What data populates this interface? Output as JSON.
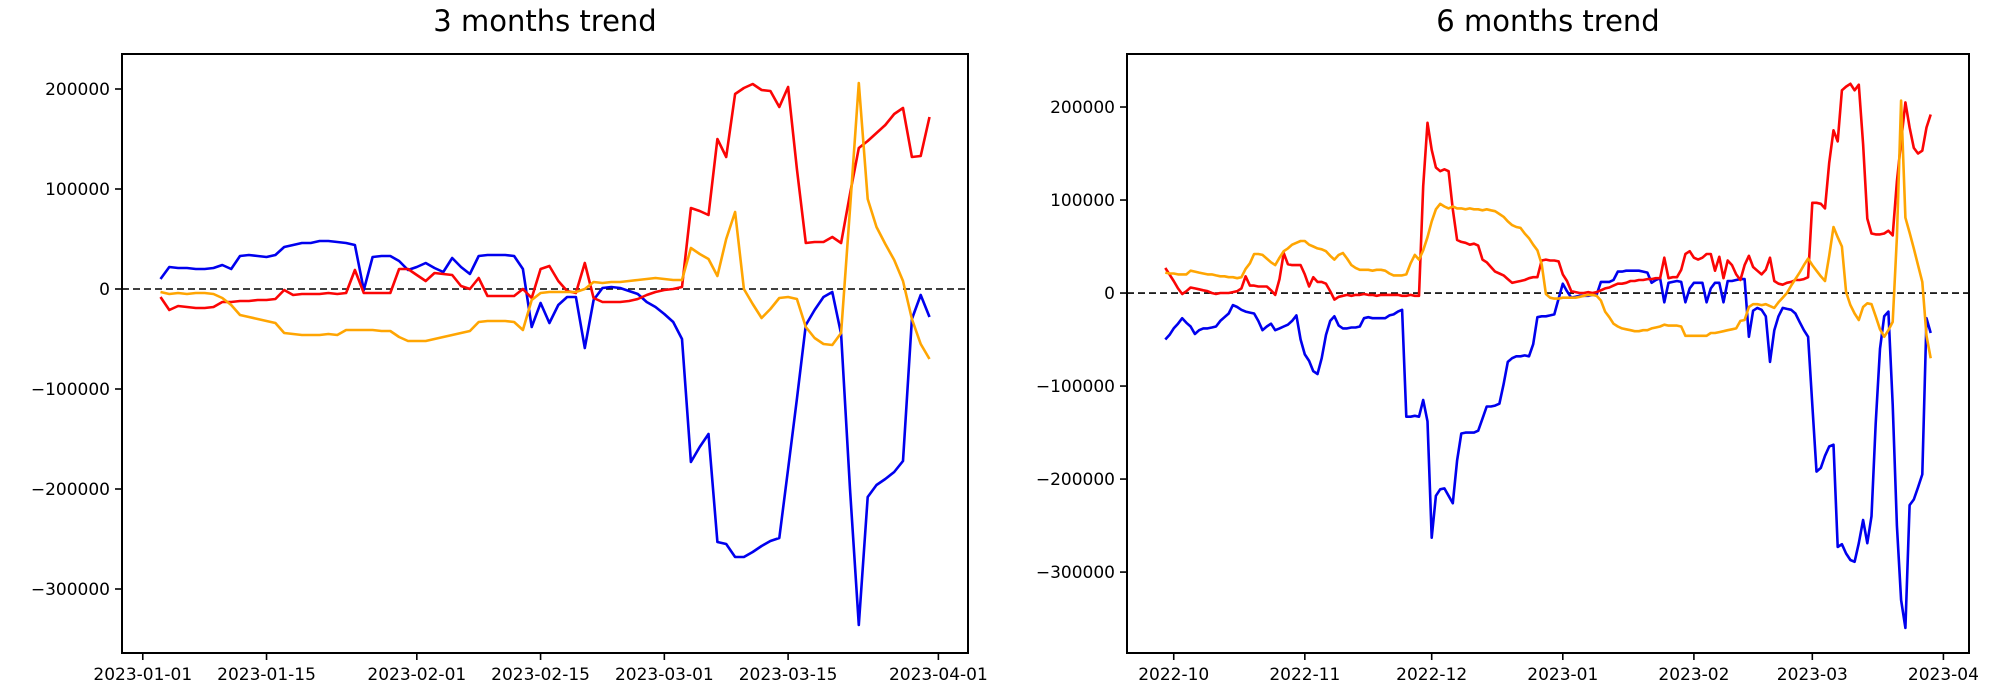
{
  "figure": {
    "background": "#ffffff",
    "axis_color": "#000000",
    "zero_line": {
      "color": "#000000",
      "style": "dashed"
    }
  },
  "chart_data": [
    {
      "type": "line",
      "title": "3 months trend",
      "xlabel": "",
      "ylabel": "",
      "grid": false,
      "legend": "none",
      "start_date": "2023-01-03",
      "interval_days": 1,
      "ylim": [
        -364000,
        235000
      ],
      "xlim_index": [
        -4.35,
        91.35
      ],
      "y_ticks": [
        200000,
        100000,
        0,
        -100000,
        -200000,
        -300000
      ],
      "x_ticks": [
        {
          "label": "2023-01-01",
          "index": -2
        },
        {
          "label": "2023-01-15",
          "index": 12
        },
        {
          "label": "2023-02-01",
          "index": 29
        },
        {
          "label": "2023-02-15",
          "index": 43
        },
        {
          "label": "2023-03-01",
          "index": 57
        },
        {
          "label": "2023-03-15",
          "index": 71
        },
        {
          "label": "2023-04-01",
          "index": 88
        }
      ],
      "series": [
        {
          "name": "blue",
          "color": "#0000ee",
          "values": [
            10000,
            22000,
            21000,
            21000,
            20000,
            20000,
            21000,
            24000,
            20000,
            33000,
            34000,
            33000,
            32000,
            34000,
            42000,
            44000,
            46000,
            46000,
            48000,
            48000,
            47000,
            46000,
            44000,
            -1000,
            32000,
            33000,
            33000,
            28000,
            19000,
            22000,
            26000,
            21000,
            17000,
            31000,
            22000,
            15000,
            33000,
            34000,
            34000,
            34000,
            33000,
            20000,
            -38000,
            -14000,
            -34000,
            -16000,
            -8000,
            -8000,
            -59000,
            -11000,
            1000,
            2000,
            1000,
            -2000,
            -5000,
            -13000,
            -18000,
            -25000,
            -33000,
            -50000,
            -173000,
            -158000,
            -145000,
            -253000,
            -255000,
            -268000,
            -268000,
            -263000,
            -257000,
            -252000,
            -249000,
            -180000,
            -110000,
            -36000,
            -21000,
            -8000,
            -3000,
            -45000,
            -200000,
            -336000,
            -208000,
            -196000,
            -190000,
            -183000,
            -172000,
            -30000,
            -6000,
            -28000
          ]
        },
        {
          "name": "red",
          "color": "#fb0505",
          "values": [
            -8000,
            -21000,
            -17000,
            -18000,
            -19000,
            -19000,
            -18000,
            -13000,
            -13000,
            -12000,
            -12000,
            -11000,
            -11000,
            -10000,
            -1000,
            -6000,
            -5000,
            -5000,
            -5000,
            -4000,
            -5000,
            -4000,
            19000,
            -4000,
            -4000,
            -4000,
            -4000,
            20000,
            20000,
            14000,
            8000,
            16000,
            15000,
            14000,
            3000,
            0,
            11000,
            -7000,
            -7000,
            -7000,
            -7000,
            0,
            -9000,
            20000,
            23000,
            8000,
            -2000,
            -4000,
            26000,
            -9000,
            -13000,
            -13000,
            -13000,
            -12000,
            -10000,
            -6000,
            -3000,
            -1000,
            0,
            2000,
            81000,
            78000,
            74000,
            150000,
            132000,
            195000,
            201000,
            205000,
            199000,
            198000,
            182000,
            202000,
            120000,
            46000,
            47000,
            47000,
            52000,
            46000,
            95000,
            141000,
            148000,
            156000,
            164000,
            175000,
            181000,
            132000,
            133000,
            172000
          ]
        },
        {
          "name": "orange",
          "color": "#ffa502",
          "values": [
            -3000,
            -5000,
            -4000,
            -5000,
            -4000,
            -4000,
            -5000,
            -9000,
            -16000,
            -26000,
            -28000,
            -30000,
            -32000,
            -34000,
            -44000,
            -45000,
            -46000,
            -46000,
            -46000,
            -45000,
            -46000,
            -41000,
            -41000,
            -41000,
            -41000,
            -42000,
            -42000,
            -48000,
            -52000,
            -52000,
            -52000,
            -50000,
            -48000,
            -46000,
            -44000,
            -42000,
            -33000,
            -32000,
            -32000,
            -32000,
            -33000,
            -41000,
            -11000,
            -4000,
            -3000,
            -3000,
            -3000,
            -3000,
            0,
            7000,
            6000,
            7000,
            7000,
            8000,
            9000,
            10000,
            11000,
            10000,
            9000,
            9000,
            41000,
            35000,
            30000,
            13000,
            50000,
            77000,
            0,
            -15000,
            -29000,
            -20000,
            -9000,
            -8000,
            -10000,
            -38000,
            -49000,
            -55000,
            -56000,
            -44000,
            80000,
            206000,
            90000,
            62000,
            45000,
            29000,
            8000,
            -30000,
            -55000,
            -70000
          ]
        }
      ]
    },
    {
      "type": "line",
      "title": "6 months trend",
      "xlabel": "",
      "ylabel": "",
      "grid": false,
      "legend": "none",
      "start_date": "2022-09-29",
      "interval_days": 1,
      "ylim": [
        -387000,
        257000
      ],
      "xlim_index": [
        -9.05,
        190.05
      ],
      "y_ticks": [
        200000,
        100000,
        0,
        -100000,
        -200000,
        -300000
      ],
      "x_ticks": [
        {
          "label": "2022-10",
          "index": 2
        },
        {
          "label": "2022-11",
          "index": 33
        },
        {
          "label": "2022-12",
          "index": 63
        },
        {
          "label": "2023-01",
          "index": 94
        },
        {
          "label": "2023-02",
          "index": 125
        },
        {
          "label": "2023-03",
          "index": 153
        },
        {
          "label": "2023-04",
          "index": 184
        }
      ],
      "series": [
        {
          "name": "blue",
          "color": "#0000ee",
          "values": [
            -50000,
            -45000,
            -38000,
            -33000,
            -27000,
            -32000,
            -36000,
            -44000,
            -40000,
            -38000,
            -38000,
            -37000,
            -36000,
            -30000,
            -26000,
            -22000,
            -13000,
            -15000,
            -18000,
            -20000,
            -21000,
            -22000,
            -30000,
            -40000,
            -36000,
            -33000,
            -40000,
            -38000,
            -36000,
            -34000,
            -30000,
            -24000,
            -50000,
            -66000,
            -73000,
            -84000,
            -87000,
            -70000,
            -45000,
            -30000,
            -25000,
            -35000,
            -38000,
            -38000,
            -37000,
            -37000,
            -36000,
            -27000,
            -26000,
            -27000,
            -27000,
            -27000,
            -27000,
            -24000,
            -23000,
            -20000,
            -18000,
            -133000,
            -133000,
            -132000,
            -133000,
            -115000,
            -138000,
            -263000,
            -218000,
            -211000,
            -210000,
            -218000,
            -226000,
            -180000,
            -151000,
            -150000,
            -150000,
            -150000,
            -148000,
            -135000,
            -122000,
            -122000,
            -121000,
            -119000,
            -98000,
            -74000,
            -70000,
            -68000,
            -68000,
            -67000,
            -68000,
            -55000,
            -26000,
            -25000,
            -25000,
            -24000,
            -23000,
            -6000,
            10000,
            2000,
            -5000,
            -4000,
            -3000,
            -3000,
            -3000,
            -2000,
            -2000,
            12000,
            12000,
            12000,
            14000,
            23000,
            23000,
            24000,
            24000,
            24000,
            24000,
            23000,
            22000,
            11000,
            14000,
            16000,
            -10000,
            11000,
            12000,
            13000,
            12000,
            -10000,
            5000,
            11000,
            11000,
            11000,
            -10000,
            5000,
            11000,
            11000,
            -10000,
            13000,
            13000,
            14000,
            15000,
            15000,
            -47000,
            -19000,
            -16000,
            -18000,
            -25000,
            -74000,
            -40000,
            -25000,
            -16000,
            -17000,
            -18000,
            -22000,
            -31000,
            -40000,
            -47000,
            -120000,
            -192000,
            -188000,
            -175000,
            -165000,
            -163000,
            -273000,
            -270000,
            -280000,
            -287000,
            -289000,
            -269000,
            -244000,
            -269000,
            -240000,
            -140000,
            -60000,
            -25000,
            -20000,
            -120000,
            -250000,
            -330000,
            -360000,
            -228000,
            -222000,
            -209000,
            -195000,
            -27000,
            -43000
          ]
        },
        {
          "name": "red",
          "color": "#fb0505",
          "values": [
            27000,
            20000,
            13000,
            5000,
            -1000,
            2000,
            6000,
            5000,
            4000,
            3000,
            2000,
            0,
            -1000,
            0,
            0,
            0,
            1000,
            2000,
            5000,
            18000,
            8000,
            8000,
            7000,
            7000,
            7000,
            3000,
            -2000,
            15000,
            43000,
            31000,
            30000,
            30000,
            30000,
            20000,
            7000,
            17000,
            12000,
            12000,
            10000,
            2000,
            -7000,
            -4000,
            -3000,
            -2000,
            -3000,
            -2000,
            -2000,
            -1000,
            -2000,
            -2000,
            -3000,
            -2000,
            -2000,
            -2000,
            -2000,
            -2000,
            -3000,
            -3000,
            -2000,
            -3000,
            -3000,
            115000,
            183000,
            154000,
            135000,
            131000,
            133000,
            131000,
            90000,
            57000,
            55000,
            54000,
            52000,
            53000,
            51000,
            36000,
            33000,
            28000,
            23000,
            21000,
            19000,
            15000,
            11000,
            12000,
            13000,
            14000,
            16000,
            17000,
            17000,
            35000,
            36000,
            35000,
            35000,
            34000,
            20000,
            13000,
            2000,
            1000,
            0,
            0,
            1000,
            0,
            1000,
            3000,
            5000,
            6000,
            8000,
            10000,
            10000,
            11000,
            13000,
            13000,
            14000,
            14000,
            15000,
            15000,
            16000,
            16000,
            38000,
            16000,
            17000,
            17000,
            25000,
            42000,
            45000,
            38000,
            36000,
            38000,
            42000,
            42000,
            24000,
            39000,
            16000,
            35000,
            30000,
            20000,
            14000,
            30000,
            40000,
            28000,
            24000,
            20000,
            25000,
            38000,
            13000,
            10000,
            9000,
            11000,
            12000,
            14000,
            14000,
            15000,
            17000,
            97000,
            97000,
            96000,
            91000,
            140000,
            175000,
            163000,
            218000,
            222000,
            225000,
            218000,
            224000,
            160000,
            80000,
            64000,
            63000,
            63000,
            64000,
            67000,
            62000,
            120000,
            163000,
            205000,
            178000,
            156000,
            150000,
            153000,
            178000,
            192000
          ]
        },
        {
          "name": "orange",
          "color": "#ffa502",
          "values": [
            22000,
            21000,
            21000,
            20000,
            20000,
            20000,
            24000,
            23000,
            22000,
            21000,
            20000,
            20000,
            19000,
            18000,
            18000,
            17000,
            17000,
            16000,
            17000,
            26000,
            32000,
            42000,
            42000,
            41000,
            37000,
            33000,
            30000,
            38000,
            45000,
            48000,
            52000,
            54000,
            56000,
            56000,
            52000,
            50000,
            48000,
            47000,
            45000,
            40000,
            36000,
            41000,
            43000,
            37000,
            30000,
            27000,
            25000,
            25000,
            25000,
            24000,
            25000,
            25000,
            24000,
            21000,
            19000,
            19000,
            19000,
            20000,
            32000,
            41000,
            36000,
            46000,
            60000,
            77000,
            90000,
            96000,
            93000,
            91000,
            93000,
            91000,
            91000,
            90000,
            91000,
            90000,
            90000,
            89000,
            90000,
            89000,
            88000,
            85000,
            82000,
            77000,
            73000,
            71000,
            70000,
            64000,
            59000,
            52000,
            46000,
            31000,
            -1000,
            -5000,
            -6000,
            -6000,
            -5000,
            -5000,
            -5000,
            -5000,
            -4000,
            -3000,
            -2000,
            -2000,
            -3000,
            -8000,
            -20000,
            -26000,
            -33000,
            -36000,
            -38000,
            -39000,
            -40000,
            -41000,
            -41000,
            -40000,
            -40000,
            -38000,
            -37000,
            -36000,
            -34000,
            -35000,
            -35000,
            -35000,
            -36000,
            -46000,
            -46000,
            -46000,
            -46000,
            -46000,
            -46000,
            -43000,
            -43000,
            -42000,
            -41000,
            -40000,
            -39000,
            -38000,
            -30000,
            -29000,
            -15000,
            -12000,
            -12000,
            -13000,
            -12000,
            -14000,
            -16000,
            -10000,
            -5000,
            0,
            8000,
            15000,
            22000,
            30000,
            37000,
            30000,
            24000,
            18000,
            13000,
            40000,
            71000,
            60000,
            50000,
            1000,
            -13000,
            -22000,
            -29000,
            -15000,
            -11000,
            -12000,
            -25000,
            -39000,
            -47000,
            -40000,
            -31000,
            60000,
            207000,
            81000,
            65000,
            48000,
            30000,
            12000,
            -46000,
            -70000
          ]
        }
      ]
    }
  ]
}
